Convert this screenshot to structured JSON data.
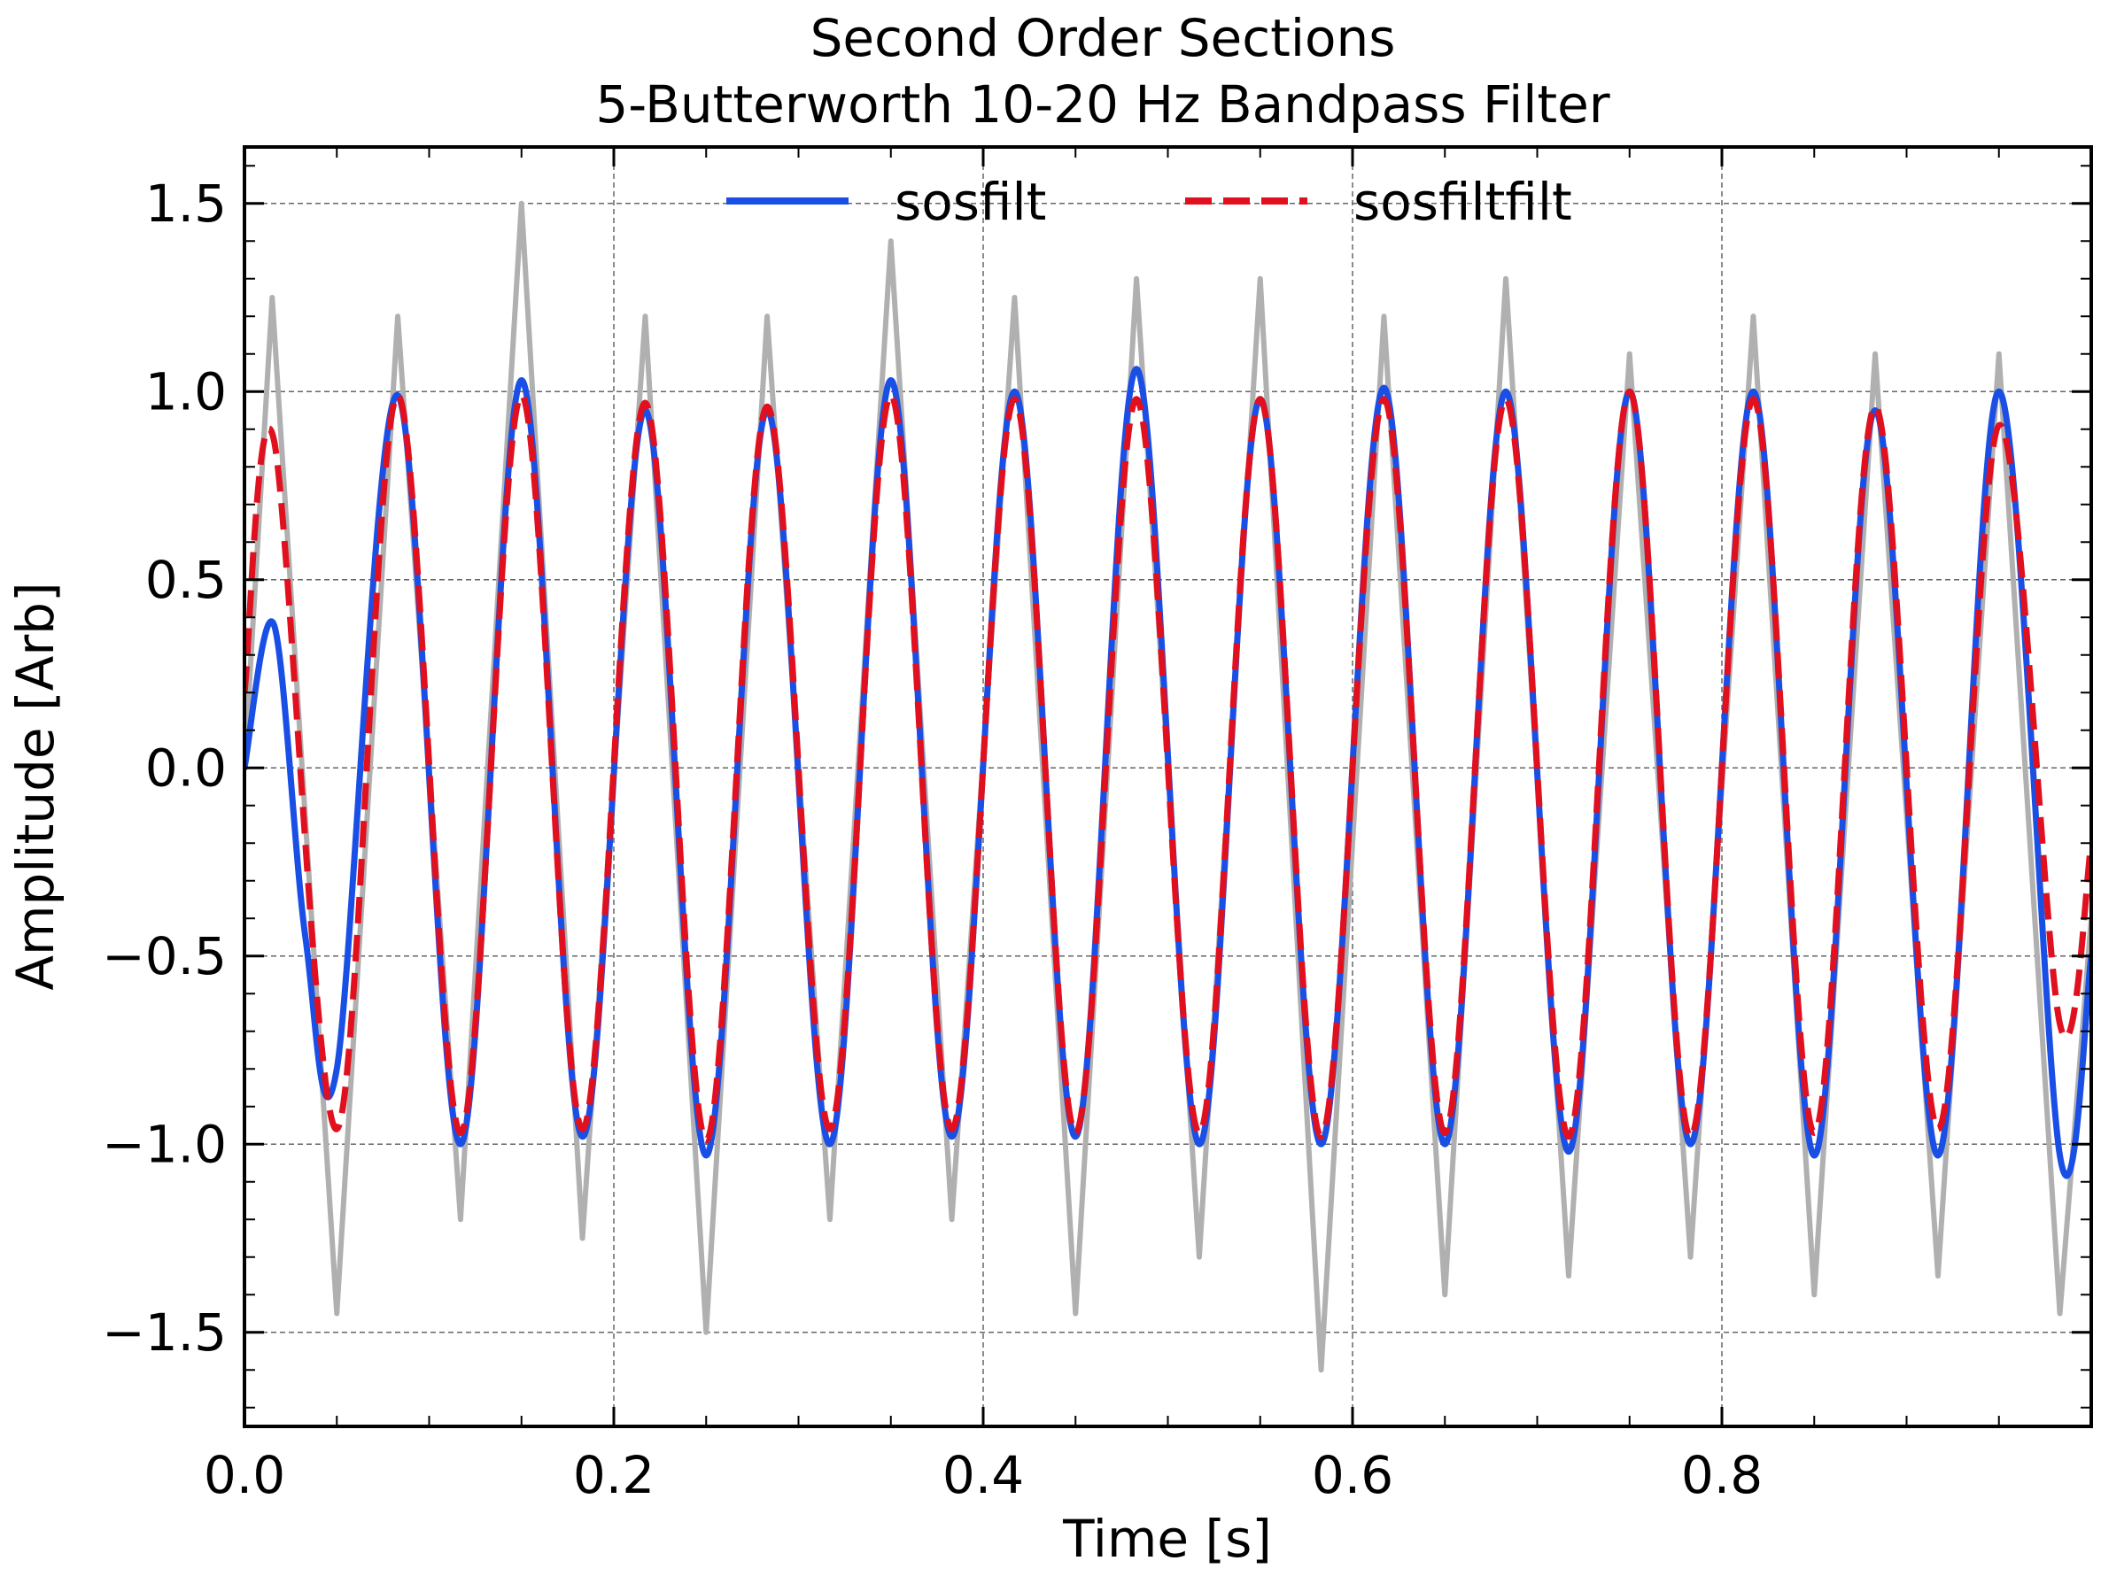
{
  "chart_data": {
    "type": "line",
    "title": [
      "Second Order Sections",
      "5-Butterworth 10-20 Hz Bandpass Filter"
    ],
    "xlabel": "Time [s]",
    "ylabel": "Amplitude [Arb]",
    "xlim": [
      0.0,
      1.0
    ],
    "ylim": [
      -1.75,
      1.65
    ],
    "x_ticks": [
      0.0,
      0.2,
      0.4,
      0.6,
      0.8
    ],
    "x_tick_labels": [
      "0.0",
      "0.2",
      "0.4",
      "0.6",
      "0.8"
    ],
    "y_ticks": [
      -1.5,
      -1.0,
      -0.5,
      0.0,
      0.5,
      1.0,
      1.5
    ],
    "y_tick_labels": [
      "−1.5",
      "−1.0",
      "−0.5",
      "0.0",
      "0.5",
      "1.0",
      "1.5"
    ],
    "grid": true,
    "legend_position": "top-center",
    "series": [
      {
        "name": "",
        "style": "solid",
        "color": "#b0b0b0",
        "description": "noisy input: 15 Hz sine of amplitude 1 plus high-frequency noise",
        "x": [
          0.0,
          0.015,
          0.05,
          0.083,
          0.117,
          0.15,
          0.183,
          0.217,
          0.25,
          0.283,
          0.317,
          0.35,
          0.383,
          0.417,
          0.45,
          0.483,
          0.517,
          0.55,
          0.583,
          0.617,
          0.65,
          0.683,
          0.717,
          0.75,
          0.783,
          0.817,
          0.85,
          0.883,
          0.917,
          0.95,
          0.983,
          1.0
        ],
        "y": [
          0.0,
          1.25,
          -1.45,
          1.2,
          -1.2,
          1.5,
          -1.25,
          1.2,
          -1.5,
          1.2,
          -1.2,
          1.4,
          -1.2,
          1.25,
          -1.45,
          1.3,
          -1.3,
          1.3,
          -1.6,
          1.2,
          -1.4,
          1.3,
          -1.35,
          1.1,
          -1.3,
          1.2,
          -1.4,
          1.1,
          -1.35,
          1.1,
          -1.45,
          -0.4
        ]
      },
      {
        "name": "sosfilt",
        "style": "solid",
        "color": "#1a4fe6",
        "x": [
          0.0,
          0.016,
          0.033,
          0.05,
          0.083,
          0.117,
          0.15,
          0.183,
          0.217,
          0.25,
          0.283,
          0.317,
          0.35,
          0.383,
          0.417,
          0.45,
          0.483,
          0.517,
          0.55,
          0.583,
          0.617,
          0.65,
          0.683,
          0.717,
          0.75,
          0.783,
          0.817,
          0.85,
          0.883,
          0.917,
          0.95,
          0.983,
          1.0
        ],
        "y": [
          0.0,
          0.38,
          -0.45,
          -0.8,
          0.99,
          -1.0,
          1.03,
          -0.98,
          0.95,
          -1.03,
          0.95,
          -1.0,
          1.03,
          -0.98,
          1.0,
          -0.98,
          1.06,
          -1.0,
          0.98,
          -1.0,
          1.01,
          -1.0,
          1.0,
          -1.02,
          1.0,
          -1.0,
          1.0,
          -1.03,
          0.95,
          -1.03,
          1.0,
          -1.03,
          -0.5
        ]
      },
      {
        "name": "sosfiltfilt",
        "style": "dashed",
        "color": "#e0101e",
        "x": [
          0.0,
          0.016,
          0.05,
          0.083,
          0.117,
          0.15,
          0.183,
          0.217,
          0.25,
          0.283,
          0.317,
          0.35,
          0.383,
          0.417,
          0.45,
          0.483,
          0.517,
          0.55,
          0.583,
          0.617,
          0.65,
          0.683,
          0.717,
          0.75,
          0.783,
          0.817,
          0.85,
          0.883,
          0.917,
          0.95,
          0.983,
          1.0
        ],
        "y": [
          0.2,
          0.87,
          -0.96,
          0.99,
          -0.97,
          0.99,
          -0.96,
          0.97,
          -0.99,
          0.96,
          -0.96,
          0.99,
          -0.96,
          0.98,
          -0.97,
          0.98,
          -0.97,
          0.98,
          -0.98,
          0.98,
          -0.97,
          0.98,
          -0.98,
          1.0,
          -0.98,
          0.98,
          -0.97,
          0.96,
          -0.96,
          0.91,
          -0.68,
          -0.2
        ]
      }
    ]
  }
}
